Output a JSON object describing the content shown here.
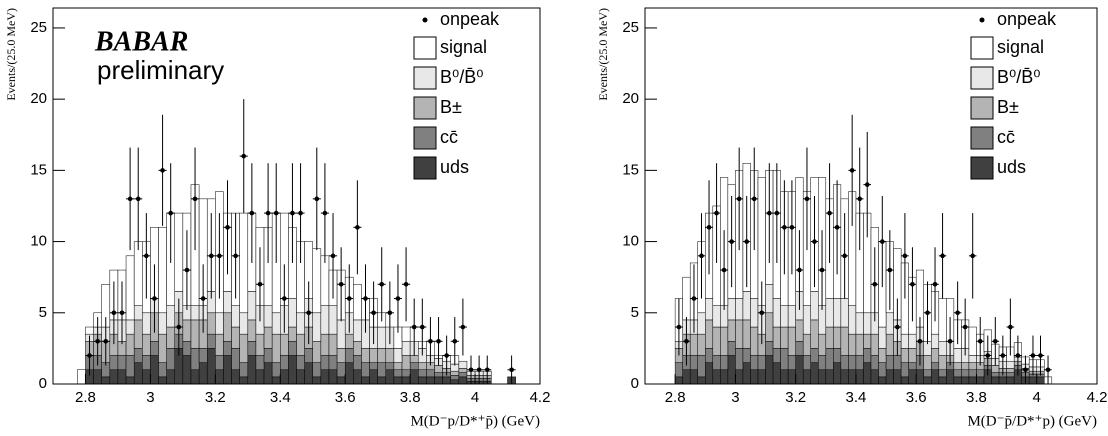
{
  "chart_data": [
    {
      "type": "histogram",
      "x_label": "M(D⁻p/D*⁺p̄) (GeV)",
      "y_label": "Events/(25.0 MeV)",
      "annotations": [
        "BABAR",
        "preliminary"
      ],
      "xlim": [
        2.7,
        4.2
      ],
      "xticks": [
        2.8,
        3,
        3.2,
        3.4,
        3.6,
        3.8,
        4,
        4.2
      ],
      "ylim": [
        0,
        26.4
      ],
      "yticks": [
        0,
        5,
        10,
        15,
        20,
        25
      ],
      "bins": [
        2.775,
        2.8,
        2.825,
        2.85,
        2.875,
        2.9,
        2.925,
        2.95,
        2.975,
        3,
        3.025,
        3.05,
        3.075,
        3.1,
        3.125,
        3.15,
        3.175,
        3.2,
        3.225,
        3.25,
        3.275,
        3.3,
        3.325,
        3.35,
        3.375,
        3.4,
        3.425,
        3.45,
        3.475,
        3.5,
        3.525,
        3.55,
        3.575,
        3.6,
        3.625,
        3.65,
        3.675,
        3.7,
        3.725,
        3.75,
        3.775,
        3.8,
        3.825,
        3.85,
        3.875,
        3.9,
        3.925,
        3.95,
        3.975,
        4,
        4.025,
        4.05,
        4.075,
        4.1,
        4.125
      ],
      "series": [
        {
          "name": "uds",
          "color": "#404040",
          "values": [
            0,
            1,
            1,
            0.5,
            1,
            1,
            0.5,
            1.5,
            1,
            2,
            0.5,
            1,
            2.5,
            2,
            1,
            1.5,
            2.5,
            1,
            2,
            1,
            0.5,
            2,
            1,
            1.5,
            0.5,
            1,
            2,
            1,
            1.5,
            0.5,
            1,
            1,
            0.5,
            1.5,
            1,
            0.5,
            1,
            0.5,
            1,
            0.5,
            0.5,
            1,
            0.5,
            0.5,
            0.5,
            0.5,
            0.3,
            0.5,
            0.2,
            0.2,
            0.2,
            0,
            0,
            0.5
          ]
        },
        {
          "name": "cc̄",
          "color": "#808080",
          "values": [
            0,
            1,
            1,
            1,
            1,
            1,
            1.5,
            1,
            1,
            1,
            1,
            1.5,
            1,
            1,
            1.5,
            1,
            1,
            1,
            1,
            1.5,
            1,
            1,
            1,
            1,
            1,
            1,
            1,
            1,
            1,
            1,
            1,
            1,
            1,
            1,
            1,
            1,
            0.5,
            1,
            0.5,
            0.5,
            0.5,
            0.5,
            0.5,
            0.5,
            0.3,
            0.3,
            0.3,
            0.3,
            0.2,
            0.2,
            0.2,
            0,
            0,
            0
          ]
        },
        {
          "name": "B±",
          "color": "#b4b4b4",
          "values": [
            0,
            1,
            1.5,
            1.5,
            1.5,
            1,
            1.5,
            2,
            1.5,
            2,
            2,
            1.5,
            1.5,
            1.5,
            2,
            2,
            1.5,
            1.5,
            2,
            1.5,
            2,
            1.5,
            1.5,
            1.5,
            2,
            1.5,
            1,
            1.5,
            1.5,
            1.5,
            1.5,
            1.5,
            1,
            1,
            1,
            1,
            1,
            1,
            1,
            0.5,
            1,
            0.5,
            0.5,
            0.5,
            0.5,
            0.3,
            0.3,
            0.3,
            0.2,
            0.2,
            0.2,
            0,
            0,
            0
          ]
        },
        {
          "name": "B⁰/B̄⁰",
          "color": "#e8e8e8",
          "values": [
            0,
            0.5,
            0.5,
            1,
            1,
            1.5,
            1,
            1,
            1.5,
            1,
            1.5,
            1.5,
            1.5,
            1,
            1,
            1,
            1.5,
            1.5,
            1.5,
            1.5,
            1.5,
            2,
            2,
            1.5,
            1.5,
            2,
            2,
            1.5,
            2,
            2,
            2,
            2,
            2,
            1.5,
            1.5,
            2,
            1.5,
            1.5,
            1.5,
            1,
            1,
            1,
            1,
            0.5,
            0.5,
            0.5,
            0.5,
            0.5,
            0.3,
            0.3,
            0.3,
            0,
            0,
            0
          ]
        },
        {
          "name": "signal",
          "color": "#ffffff",
          "values": [
            1,
            0.5,
            1,
            3,
            3.5,
            3.5,
            4.5,
            4.5,
            5,
            5,
            6,
            6.5,
            5.5,
            6.5,
            8.5,
            7.5,
            6.5,
            8.5,
            5.5,
            6.5,
            7,
            5.5,
            5.5,
            5.5,
            7,
            6.5,
            5,
            5,
            4,
            4.5,
            3.5,
            2.5,
            3.5,
            2.5,
            2.5,
            1.5,
            2,
            1,
            0,
            1.5,
            1,
            0,
            0.5,
            1,
            0.2,
            0.4,
            0.6,
            0,
            0,
            0,
            0,
            0,
            0,
            0
          ]
        }
      ],
      "points": {
        "name": "onpeak",
        "color": "#000000",
        "values": [
          null,
          2,
          3,
          3,
          5,
          5,
          13,
          13,
          9,
          6,
          15,
          12,
          4,
          8,
          13,
          6,
          9,
          9,
          11,
          9,
          16,
          12,
          7,
          12,
          12,
          6,
          12,
          12,
          5,
          13,
          12,
          9,
          7,
          6,
          11,
          6,
          5,
          7,
          5,
          6,
          7,
          4,
          4,
          3,
          3,
          2,
          3,
          4,
          1,
          1,
          1,
          null,
          null,
          1
        ],
        "errors": [
          null,
          1.4,
          1.7,
          1.7,
          2.2,
          2.2,
          3.6,
          3.6,
          3,
          2.4,
          3.9,
          3.5,
          2,
          2.8,
          3.6,
          2.4,
          3,
          3,
          3.3,
          3,
          4,
          3.5,
          2.6,
          3.5,
          3.5,
          2.4,
          3.5,
          3.5,
          2.2,
          3.6,
          3.5,
          3,
          2.6,
          2.4,
          3.3,
          2.4,
          2.2,
          2.6,
          2.2,
          2.4,
          2.6,
          2,
          2,
          1.7,
          1.7,
          1.4,
          1.7,
          2,
          1,
          1,
          1,
          null,
          null,
          1
        ]
      }
    },
    {
      "type": "histogram",
      "x_label": "M(D⁻p̄/D*⁺p) (GeV)",
      "y_label": "Events/(25.0 MeV)",
      "xlim": [
        2.7,
        4.2
      ],
      "xticks": [
        2.8,
        3,
        3.2,
        3.4,
        3.6,
        3.8,
        4,
        4.2
      ],
      "ylim": [
        0,
        26.4
      ],
      "yticks": [
        0,
        5,
        10,
        15,
        20,
        25
      ],
      "bins": [
        2.775,
        2.8,
        2.825,
        2.85,
        2.875,
        2.9,
        2.925,
        2.95,
        2.975,
        3,
        3.025,
        3.05,
        3.075,
        3.1,
        3.125,
        3.15,
        3.175,
        3.2,
        3.225,
        3.25,
        3.275,
        3.3,
        3.325,
        3.35,
        3.375,
        3.4,
        3.425,
        3.45,
        3.475,
        3.5,
        3.525,
        3.55,
        3.575,
        3.6,
        3.625,
        3.65,
        3.675,
        3.7,
        3.725,
        3.75,
        3.775,
        3.8,
        3.825,
        3.85,
        3.875,
        3.9,
        3.925,
        3.95,
        3.975,
        4,
        4.025,
        4.05,
        4.075,
        4.1,
        4.125
      ],
      "series": [
        {
          "name": "uds",
          "color": "#404040",
          "values": [
            0,
            0.5,
            1,
            1,
            0.5,
            1.5,
            1,
            1,
            2,
            1,
            1.5,
            1,
            1,
            2,
            1.5,
            1,
            1,
            2,
            1,
            1.5,
            1,
            1,
            1.5,
            1,
            1,
            1,
            1.5,
            1,
            0.5,
            1,
            1,
            0.5,
            1,
            1,
            0.5,
            1,
            0.5,
            1,
            0.5,
            0.5,
            0.5,
            0.5,
            1,
            0.5,
            0.5,
            0.5,
            1,
            0.5,
            0.5,
            0.5,
            0,
            0,
            0,
            0
          ]
        },
        {
          "name": "cc̄",
          "color": "#808080",
          "values": [
            0,
            1,
            1,
            1,
            1.5,
            1,
            1,
            1,
            1,
            1.5,
            1,
            1,
            1,
            1,
            1,
            1.5,
            1,
            1,
            1,
            1,
            1,
            1.5,
            1,
            1,
            1,
            1,
            1,
            1,
            1,
            1,
            1,
            1,
            0.5,
            1,
            0.5,
            0.5,
            0.5,
            0.5,
            0.5,
            0.5,
            0.5,
            0.5,
            0.3,
            0.3,
            0.3,
            0.3,
            0.3,
            0.3,
            0.2,
            0.2,
            0,
            0,
            0,
            0
          ]
        },
        {
          "name": "B±",
          "color": "#b4b4b4",
          "values": [
            0,
            1,
            1.5,
            1.5,
            1.5,
            2,
            2,
            2,
            1.5,
            2,
            2,
            2,
            1.5,
            2,
            1.5,
            1.5,
            2,
            1.5,
            1.5,
            2,
            1.5,
            1.5,
            1.5,
            2,
            1.5,
            1.5,
            1,
            1.5,
            1,
            1.5,
            1,
            1,
            1,
            1,
            1,
            1,
            1,
            0.5,
            0.5,
            0.5,
            0.5,
            0.5,
            0.5,
            0.5,
            0.3,
            0.3,
            0.3,
            0.3,
            0.2,
            0.2,
            0,
            0,
            0,
            0
          ]
        },
        {
          "name": "B⁰/B̄⁰",
          "color": "#e8e8e8",
          "values": [
            0,
            0.5,
            1,
            1,
            1.5,
            1.5,
            1.5,
            1.5,
            1.5,
            1.5,
            2,
            2,
            2,
            2,
            2,
            1.5,
            1.5,
            2,
            2,
            2,
            2,
            2,
            2,
            2,
            2,
            1.5,
            1.5,
            1.5,
            1.5,
            1.5,
            1.5,
            1,
            1,
            1,
            1,
            1,
            1,
            1,
            1,
            1,
            0.5,
            0.5,
            0.5,
            0.5,
            0.5,
            0.5,
            0.3,
            0.3,
            0.3,
            0.3,
            0,
            0,
            0,
            0
          ]
        },
        {
          "name": "signal",
          "color": "#ffffff",
          "values": [
            0,
            3,
            3,
            4,
            5,
            6,
            7,
            9,
            8,
            9,
            9,
            9,
            9,
            8,
            9,
            8,
            8,
            8,
            8,
            8,
            9,
            7,
            8,
            7,
            8,
            7,
            7,
            6,
            6,
            5,
            5,
            5,
            4,
            4,
            4,
            3,
            3,
            3,
            2,
            2,
            2,
            1.5,
            1.5,
            1,
            1,
            1,
            1,
            0.5,
            0.5,
            0.5,
            0.5,
            0,
            0,
            0
          ]
        }
      ],
      "points": {
        "name": "onpeak",
        "color": "#000000",
        "values": [
          null,
          4,
          3,
          6,
          9,
          11,
          12,
          8,
          10,
          13,
          10,
          13,
          5,
          12,
          12,
          11,
          11,
          8,
          13,
          10,
          8,
          12,
          11,
          9,
          15,
          13,
          14,
          7,
          10,
          8,
          4,
          9,
          7,
          3,
          5,
          7,
          9,
          3,
          5,
          4,
          9,
          3,
          2,
          3,
          2,
          4,
          2,
          1,
          2,
          2,
          1,
          null,
          null,
          null
        ],
        "errors": [
          null,
          2,
          1.7,
          2.4,
          3,
          3.3,
          3.5,
          2.8,
          3.2,
          3.6,
          3.2,
          3.6,
          2.2,
          3.5,
          3.5,
          3.3,
          3.3,
          2.8,
          3.6,
          3.2,
          2.8,
          3.5,
          3.3,
          3,
          3.9,
          3.6,
          3.7,
          2.6,
          3.2,
          2.8,
          2,
          3,
          2.6,
          1.7,
          2.2,
          2.6,
          3,
          1.7,
          2.2,
          2,
          3,
          1.7,
          1.4,
          1.7,
          1.4,
          2,
          1.4,
          1,
          1.4,
          1.4,
          1,
          null,
          null,
          null
        ]
      }
    }
  ]
}
